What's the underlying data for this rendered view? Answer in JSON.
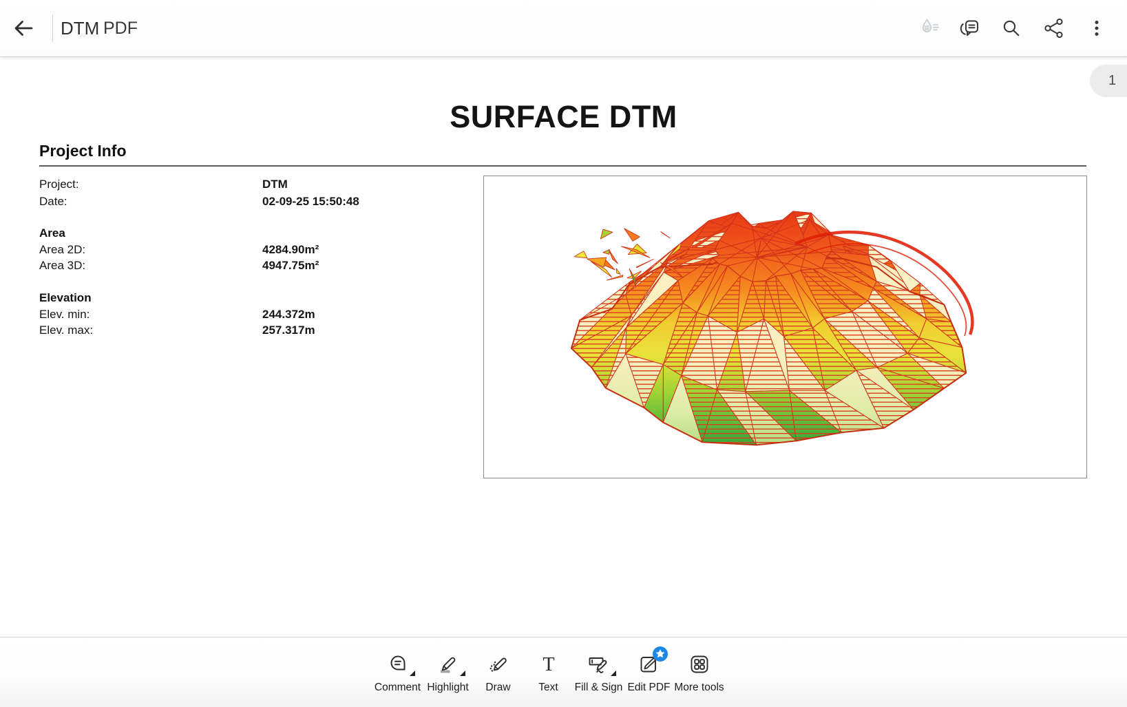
{
  "app": {
    "top_bar": {
      "title": "DTM",
      "doc_type": "PDF",
      "icons": [
        "back-arrow",
        "liquid-mode (disabled)",
        "comments",
        "search",
        "share",
        "more-options"
      ]
    },
    "page_indicator": "1",
    "toolbar": {
      "items": [
        {
          "label": "Comment",
          "icon": "comment-bubble-icon",
          "has_caret": true
        },
        {
          "label": "Highlight",
          "icon": "highlighter-icon",
          "has_caret": true
        },
        {
          "label": "Draw",
          "icon": "pencil-squiggle-icon",
          "has_caret": false
        },
        {
          "label": "Text",
          "icon": "text-T-icon",
          "has_caret": false
        },
        {
          "label": "Fill & Sign",
          "icon": "fill-sign-pen-icon",
          "has_caret": true
        },
        {
          "label": "Edit PDF",
          "icon": "edit-square-icon",
          "has_caret": false,
          "badge": "premium-star"
        },
        {
          "label": "More tools",
          "icon": "tools-grid-icon",
          "has_caret": false
        }
      ]
    }
  },
  "document": {
    "title": "SURFACE DTM",
    "section": {
      "heading": "Project Info",
      "groups": [
        {
          "heading": "",
          "rows": [
            {
              "label": "Project:",
              "value": "DTM"
            },
            {
              "label": "Date:",
              "value": "02-09-25 15:50:48"
            }
          ]
        },
        {
          "heading": "Area",
          "rows": [
            {
              "label": "Area 2D:",
              "value": "4284.90m²"
            },
            {
              "label": "Area 3D:",
              "value": "4947.75m²"
            }
          ]
        },
        {
          "heading": "Elevation",
          "rows": [
            {
              "label": "Elev. min:",
              "value": "244.372m"
            },
            {
              "label": "Elev. max:",
              "value": "257.317m"
            }
          ]
        }
      ]
    },
    "figure": {
      "type": "3d-triangulated-surface",
      "description": "DTM terrain mound, red wireframe triangulation with contour striping, elevation colormap green (low) through yellow to orange/red (high)",
      "seed": 11,
      "colors": {
        "wire": "#d0311a",
        "hatch": "#d8401f",
        "ridge": "#e01f07",
        "low": "#2f9e38",
        "mid_low": "#9fd236",
        "mid": "#e8e23a",
        "mid_high": "#f58c1e",
        "high": "#e83715",
        "cream": "#fdf0c6"
      }
    }
  }
}
